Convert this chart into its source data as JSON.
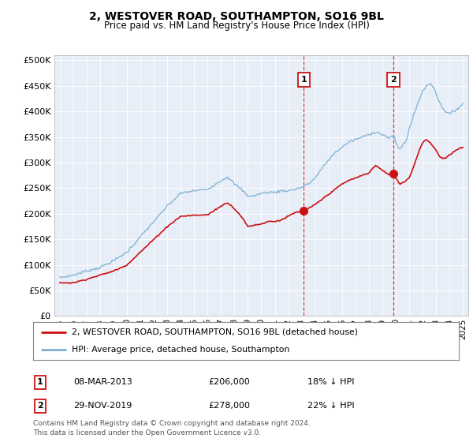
{
  "title": "2, WESTOVER ROAD, SOUTHAMPTON, SO16 9BL",
  "subtitle": "Price paid vs. HM Land Registry's House Price Index (HPI)",
  "ylim": [
    0,
    510000
  ],
  "yticks": [
    0,
    50000,
    100000,
    150000,
    200000,
    250000,
    300000,
    350000,
    400000,
    450000,
    500000
  ],
  "hpi_color": "#7bafd4",
  "price_color": "#cc1111",
  "bg_color": "#ffffff",
  "plot_bg_color": "#e8eef8",
  "grid_color": "#ffffff",
  "transaction1_price": 206000,
  "transaction2_price": 278000,
  "legend_label_price": "2, WESTOVER ROAD, SOUTHAMPTON, SO16 9BL (detached house)",
  "legend_label_hpi": "HPI: Average price, detached house, Southampton",
  "footer": "Contains HM Land Registry data © Crown copyright and database right 2024.\nThis data is licensed under the Open Government Licence v3.0.",
  "hpi_anchors_t": [
    1995.0,
    1996.0,
    1997.0,
    1998.0,
    1999.0,
    2000.0,
    2001.0,
    2002.0,
    2003.0,
    2004.0,
    2005.0,
    2006.0,
    2007.0,
    2007.5,
    2008.0,
    2008.5,
    2009.0,
    2009.5,
    2010.0,
    2010.5,
    2011.0,
    2011.5,
    2012.0,
    2012.5,
    2013.0,
    2013.5,
    2014.0,
    2014.5,
    2015.0,
    2015.5,
    2016.0,
    2016.5,
    2017.0,
    2017.5,
    2018.0,
    2018.5,
    2019.0,
    2019.5,
    2019.9,
    2020.0,
    2020.3,
    2020.8,
    2021.0,
    2021.3,
    2021.7,
    2022.0,
    2022.3,
    2022.6,
    2022.9,
    2023.0,
    2023.3,
    2023.7,
    2024.0,
    2024.3,
    2024.7,
    2025.0
  ],
  "hpi_anchors_p": [
    75000,
    80000,
    88000,
    95000,
    108000,
    125000,
    155000,
    185000,
    215000,
    240000,
    245000,
    248000,
    265000,
    272000,
    258000,
    248000,
    235000,
    235000,
    240000,
    242000,
    242000,
    245000,
    245000,
    248000,
    252000,
    258000,
    270000,
    288000,
    305000,
    320000,
    330000,
    340000,
    345000,
    350000,
    355000,
    360000,
    355000,
    348000,
    352000,
    340000,
    325000,
    345000,
    365000,
    390000,
    420000,
    440000,
    450000,
    455000,
    445000,
    435000,
    415000,
    400000,
    395000,
    400000,
    408000,
    415000
  ],
  "price_anchors_t": [
    1995.0,
    1996.0,
    1997.0,
    1998.0,
    1999.0,
    2000.0,
    2001.0,
    2002.0,
    2003.0,
    2004.0,
    2005.0,
    2006.0,
    2007.0,
    2007.5,
    2008.0,
    2008.5,
    2009.0,
    2009.5,
    2010.0,
    2010.5,
    2011.0,
    2011.5,
    2012.0,
    2012.5,
    2013.0,
    2013.25,
    2013.5,
    2014.0,
    2014.5,
    2015.0,
    2015.5,
    2016.0,
    2016.5,
    2017.0,
    2017.5,
    2018.0,
    2018.5,
    2019.0,
    2019.5,
    2019.92,
    2020.0,
    2020.3,
    2020.6,
    2021.0,
    2021.3,
    2021.7,
    2022.0,
    2022.3,
    2022.6,
    2022.9,
    2023.0,
    2023.3,
    2023.7,
    2024.0,
    2024.3,
    2024.7,
    2025.0
  ],
  "price_anchors_p": [
    65000,
    65000,
    72000,
    80000,
    88000,
    100000,
    125000,
    150000,
    175000,
    195000,
    197000,
    198000,
    215000,
    222000,
    210000,
    195000,
    175000,
    178000,
    180000,
    185000,
    185000,
    188000,
    195000,
    202000,
    205000,
    206000,
    210000,
    218000,
    228000,
    238000,
    248000,
    258000,
    265000,
    270000,
    275000,
    280000,
    295000,
    285000,
    276000,
    278000,
    270000,
    258000,
    262000,
    270000,
    290000,
    320000,
    340000,
    345000,
    338000,
    328000,
    325000,
    310000,
    308000,
    315000,
    320000,
    328000,
    330000
  ]
}
